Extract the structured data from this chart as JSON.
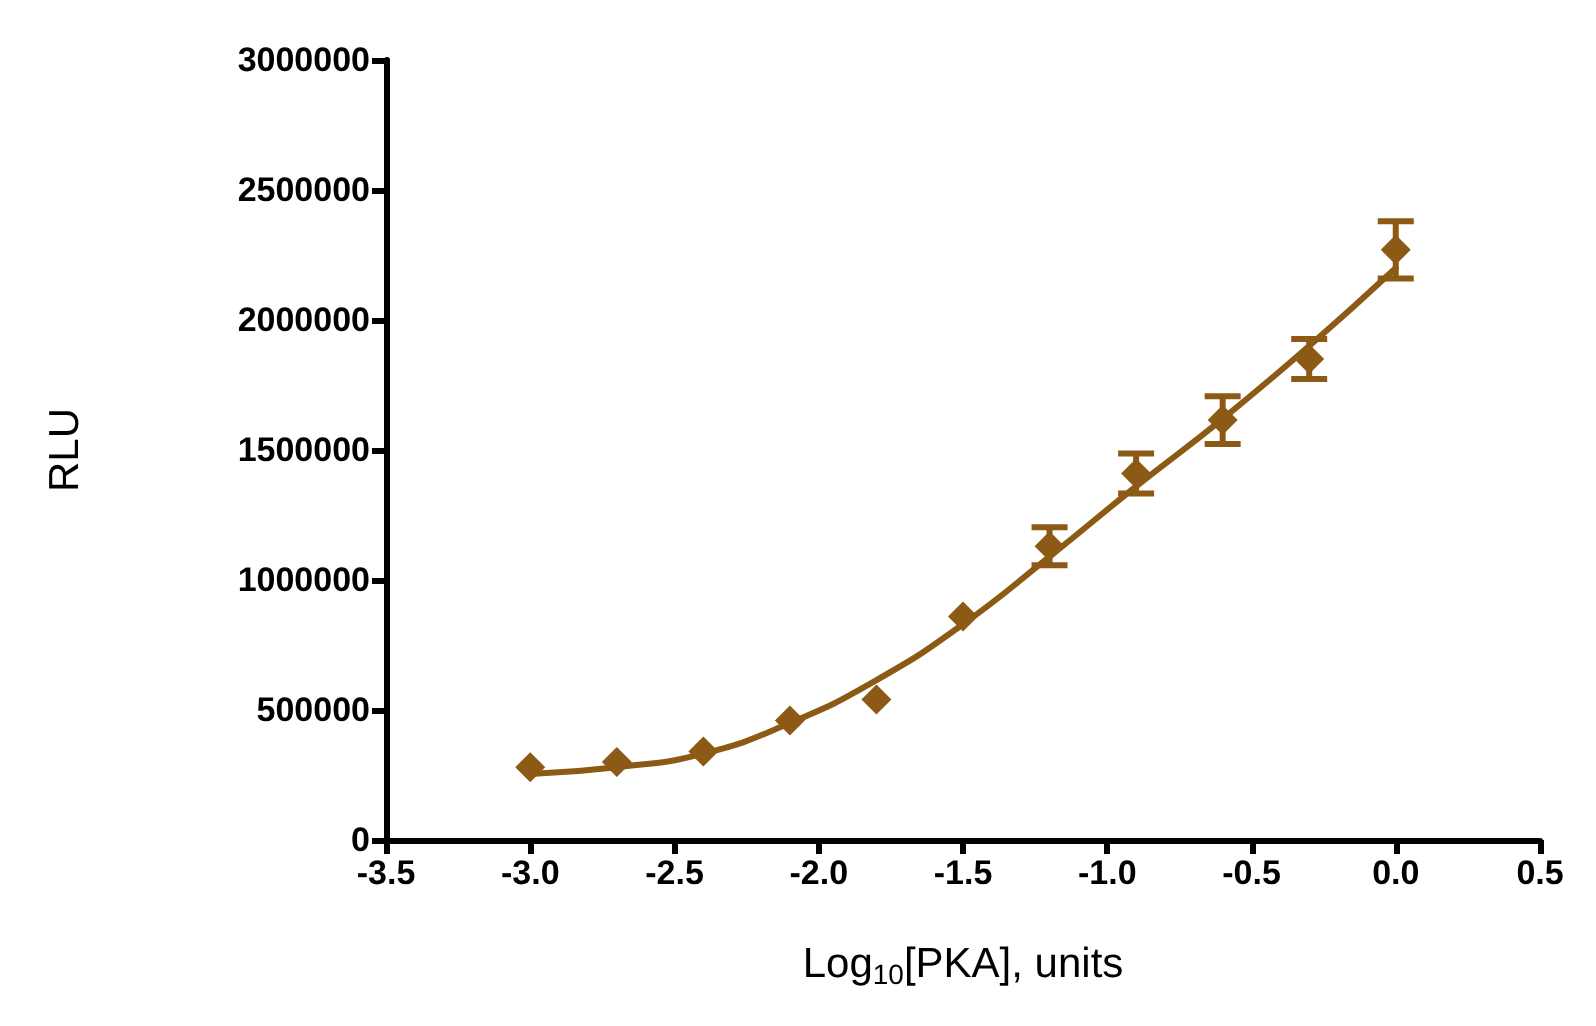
{
  "chart_data": {
    "type": "scatter",
    "xlabel": "Log$_{10}$[PKA], units",
    "ylabel": "RLU",
    "xlim": [
      -3.5,
      0.5
    ],
    "xticks": [
      -3.5,
      {
        "value": -3,
        "label": "-3.0"
      },
      -2.5,
      {
        "value": -2,
        "label": "-2.0"
      },
      -1.5,
      {
        "value": -1,
        "label": "-1.0"
      },
      -0.5,
      {
        "value": 0,
        "label": "0.0"
      },
      0.5
    ],
    "ylim": [
      0,
      3000000
    ],
    "yticks": [
      0,
      500000,
      1000000,
      1500000,
      2000000,
      2500000,
      3000000
    ],
    "grid": false,
    "series": [
      {
        "color": "#8c5a14",
        "marker": "diamond",
        "x": [
          -3.0,
          -2.7,
          -2.4,
          -2.1,
          -1.8,
          -1.5,
          -1.2,
          -0.9,
          -0.6,
          -0.3,
          0.0
        ],
        "values": [
          280000,
          300000,
          340000,
          460000,
          540000,
          860000,
          1130000,
          1410000,
          1615000,
          1850000,
          2270000
        ],
        "errors": [
          null,
          null,
          null,
          null,
          null,
          null,
          73000,
          77000,
          92000,
          77000,
          110000
        ]
      },
      {
        "type": "line",
        "color": "#8c5a14",
        "marker": "none",
        "line_style": "solid",
        "x": [
          -3.0,
          -2.7,
          -2.4,
          -2.1,
          -1.8,
          -1.5,
          -1.2,
          -0.9,
          -0.6,
          -0.3,
          0.0
        ],
        "values": [
          254000,
          280000,
          332000,
          450000,
          615000,
          830000,
          1090000,
          1360000,
          1620000,
          1900000,
          2200000
        ]
      }
    ]
  }
}
